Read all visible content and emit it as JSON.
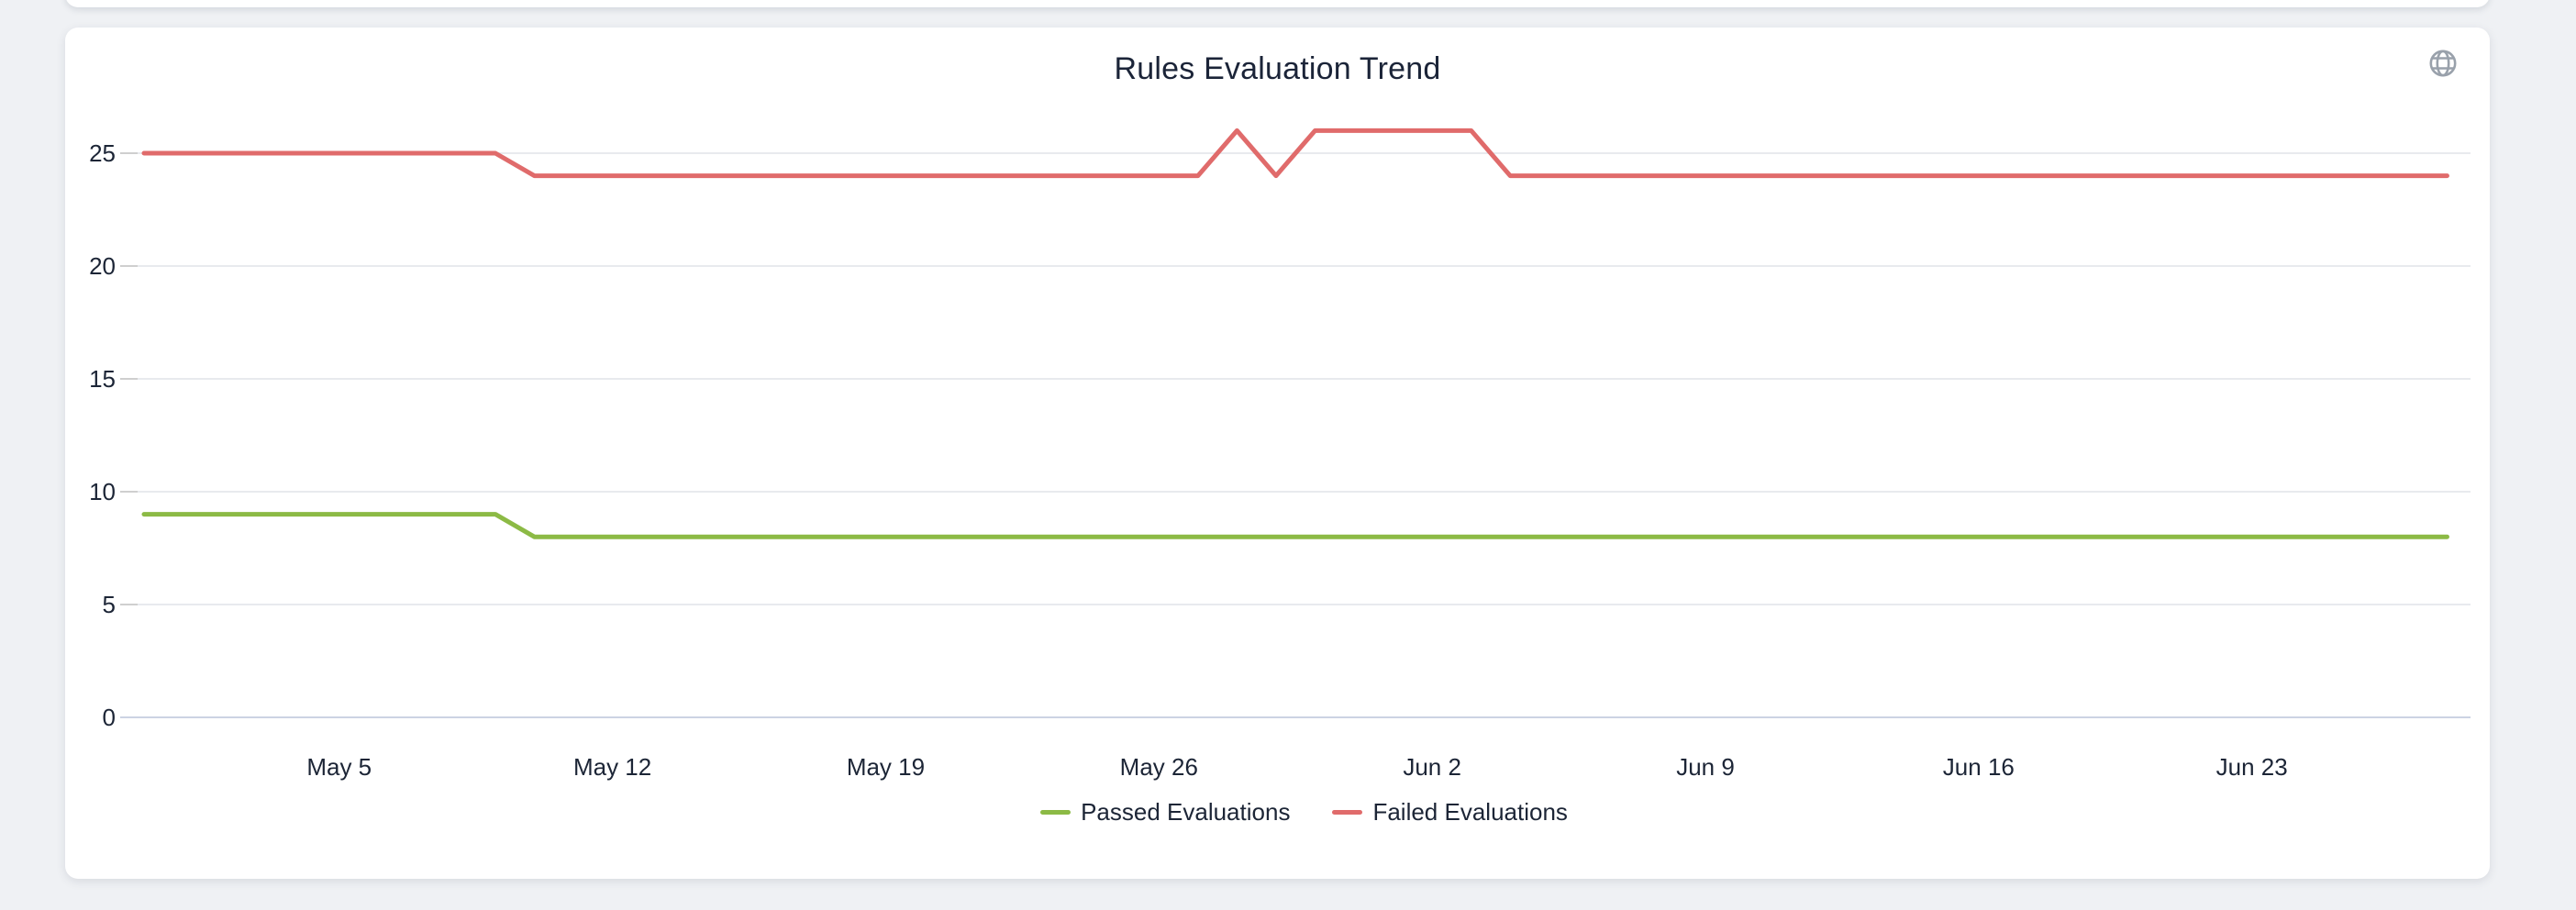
{
  "page": {
    "background_color": "#eff1f4"
  },
  "card": {
    "title": "Rules Evaluation Trend",
    "globe_icon": "globe-icon",
    "globe_icon_color": "#99a1ab"
  },
  "chart_data": {
    "type": "line",
    "title": "Rules Evaluation Trend",
    "grid": true,
    "legend_position": "bottom",
    "x_tick_labels": [
      "May 5",
      "May 12",
      "May 19",
      "May 26",
      "Jun 2",
      "Jun 9",
      "Jun 16",
      "Jun 23"
    ],
    "x_tick_positions": [
      5,
      12,
      19,
      26,
      33,
      40,
      47,
      54
    ],
    "n_points": 60,
    "y_ticks": [
      0,
      5,
      10,
      15,
      20,
      25
    ],
    "ylim": [
      0,
      27
    ],
    "grid_color": "#e8eaee",
    "axis_line_color": "#ccd3e3",
    "tick_color": "#cfcfcf",
    "label_color": "#1c2536",
    "series": [
      {
        "name": "Passed Evaluations",
        "color": "#8cba45",
        "values": [
          9,
          9,
          9,
          9,
          9,
          9,
          9,
          9,
          9,
          9,
          8,
          8,
          8,
          8,
          8,
          8,
          8,
          8,
          8,
          8,
          8,
          8,
          8,
          8,
          8,
          8,
          8,
          8,
          8,
          8,
          8,
          8,
          8,
          8,
          8,
          8,
          8,
          8,
          8,
          8,
          8,
          8,
          8,
          8,
          8,
          8,
          8,
          8,
          8,
          8,
          8,
          8,
          8,
          8,
          8,
          8,
          8,
          8,
          8,
          8
        ]
      },
      {
        "name": "Failed Evaluations",
        "color": "#e06b6b",
        "values": [
          25,
          25,
          25,
          25,
          25,
          25,
          25,
          25,
          25,
          25,
          24,
          24,
          24,
          24,
          24,
          24,
          24,
          24,
          24,
          24,
          24,
          24,
          24,
          24,
          24,
          24,
          24,
          24,
          26,
          24,
          26,
          26,
          26,
          26,
          26,
          24,
          24,
          24,
          24,
          24,
          24,
          24,
          24,
          24,
          24,
          24,
          24,
          24,
          24,
          24,
          24,
          24,
          24,
          24,
          24,
          24,
          24,
          24,
          24,
          24
        ]
      }
    ]
  }
}
